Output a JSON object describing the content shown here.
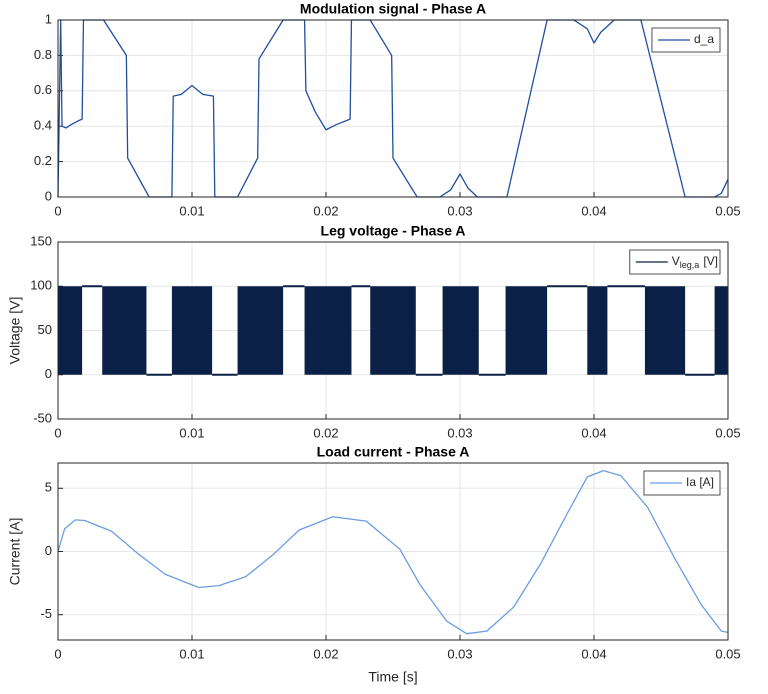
{
  "chart_data": [
    {
      "type": "line",
      "title": "Modulation signal - Phase A",
      "x": [
        0,
        0.0002,
        0.0003,
        0.0006,
        0.001,
        0.0015,
        0.0018,
        0.0019,
        0.0034,
        0.0051,
        0.0052,
        0.0068,
        0.0085,
        0.0086,
        0.0092,
        0.01,
        0.0108,
        0.0116,
        0.0117,
        0.0134,
        0.0149,
        0.015,
        0.0168,
        0.0184,
        0.0185,
        0.0192,
        0.02,
        0.0208,
        0.0218,
        0.0219,
        0.0233,
        0.0249,
        0.025,
        0.0268,
        0.0285,
        0.0293,
        0.03,
        0.0306,
        0.0313,
        0.0335,
        0.0365,
        0.0385,
        0.0395,
        0.04,
        0.0405,
        0.0415,
        0.0435,
        0.0468,
        0.049,
        0.0495,
        0.05
      ],
      "series": [
        {
          "name": "d_a",
          "color": "#1f4f9e",
          "values": [
            0,
            1,
            0.4,
            0.39,
            0.41,
            0.43,
            0.44,
            1,
            1,
            0.8,
            0.22,
            0,
            0,
            0.57,
            0.58,
            0.63,
            0.58,
            0.57,
            0,
            0,
            0.22,
            0.78,
            1,
            1,
            0.6,
            0.48,
            0.38,
            0.41,
            0.44,
            1,
            1,
            0.8,
            0.22,
            0,
            0,
            0.04,
            0.13,
            0.05,
            0,
            0,
            1,
            1,
            0.95,
            0.87,
            0.93,
            1,
            1,
            0,
            0,
            0.02,
            0.1
          ]
        }
      ],
      "xlim": [
        0,
        0.05
      ],
      "xticks": [
        0,
        0.01,
        0.02,
        0.03,
        0.04,
        0.05
      ],
      "ylim": [
        0,
        1
      ],
      "yticks": [
        0,
        0.2,
        0.4,
        0.6,
        0.8,
        1
      ],
      "grid": true,
      "legend": "upper right"
    },
    {
      "type": "band",
      "title": "Leg voltage - Phase A",
      "ylabel": "Voltage [V]",
      "series": [
        {
          "name": "V",
          "name_subscript": "leg,a",
          "name_suffix": "[V]",
          "color": "#0b2046",
          "segments": [
            {
              "x": [
                0,
                0.0018
              ],
              "y": [
                0,
                100
              ]
            },
            {
              "x": [
                0.0018,
                0.0033
              ],
              "y": [
                100,
                100
              ]
            },
            {
              "x": [
                0.0033,
                0.0066
              ],
              "y": [
                0,
                100
              ]
            },
            {
              "x": [
                0.0066,
                0.0085
              ],
              "y": [
                0,
                0
              ]
            },
            {
              "x": [
                0.0085,
                0.0115
              ],
              "y": [
                0,
                100
              ]
            },
            {
              "x": [
                0.0115,
                0.0134
              ],
              "y": [
                0,
                0
              ]
            },
            {
              "x": [
                0.0134,
                0.0168
              ],
              "y": [
                0,
                100
              ]
            },
            {
              "x": [
                0.0168,
                0.0184
              ],
              "y": [
                100,
                100
              ]
            },
            {
              "x": [
                0.0184,
                0.0219
              ],
              "y": [
                0,
                100
              ]
            },
            {
              "x": [
                0.0219,
                0.0233
              ],
              "y": [
                100,
                100
              ]
            },
            {
              "x": [
                0.0233,
                0.0267
              ],
              "y": [
                0,
                100
              ]
            },
            {
              "x": [
                0.0267,
                0.0287
              ],
              "y": [
                0,
                0
              ]
            },
            {
              "x": [
                0.0287,
                0.0314
              ],
              "y": [
                0,
                100
              ]
            },
            {
              "x": [
                0.0314,
                0.0334
              ],
              "y": [
                0,
                0
              ]
            },
            {
              "x": [
                0.0334,
                0.0365
              ],
              "y": [
                0,
                100
              ]
            },
            {
              "x": [
                0.0365,
                0.0395
              ],
              "y": [
                100,
                100
              ]
            },
            {
              "x": [
                0.0395,
                0.041
              ],
              "y": [
                0,
                100
              ]
            },
            {
              "x": [
                0.041,
                0.0438
              ],
              "y": [
                100,
                100
              ]
            },
            {
              "x": [
                0.0438,
                0.0468
              ],
              "y": [
                0,
                100
              ]
            },
            {
              "x": [
                0.0468,
                0.049
              ],
              "y": [
                0,
                0
              ]
            },
            {
              "x": [
                0.049,
                0.05
              ],
              "y": [
                0,
                100
              ]
            }
          ]
        }
      ],
      "xlim": [
        0,
        0.05
      ],
      "xticks": [
        0,
        0.01,
        0.02,
        0.03,
        0.04,
        0.05
      ],
      "ylim": [
        -50,
        150
      ],
      "yticks": [
        -50,
        0,
        50,
        100,
        150
      ],
      "grid": true,
      "legend": "upper right"
    },
    {
      "type": "line",
      "title": "Load current - Phase A",
      "xlabel": "Time [s]",
      "ylabel": "Current [A]",
      "x": [
        0,
        0.0005,
        0.0013,
        0.002,
        0.004,
        0.006,
        0.008,
        0.0105,
        0.012,
        0.014,
        0.016,
        0.018,
        0.0205,
        0.023,
        0.0255,
        0.027,
        0.029,
        0.0305,
        0.032,
        0.034,
        0.036,
        0.038,
        0.0395,
        0.0407,
        0.042,
        0.044,
        0.046,
        0.048,
        0.0495,
        0.05
      ],
      "series": [
        {
          "name": "Ia [A]",
          "color": "#6b9de3",
          "values": [
            0,
            1.8,
            2.5,
            2.45,
            1.6,
            -0.2,
            -1.8,
            -2.85,
            -2.7,
            -2.0,
            -0.3,
            1.7,
            2.75,
            2.4,
            0.2,
            -2.6,
            -5.5,
            -6.5,
            -6.3,
            -4.4,
            -1,
            3,
            5.9,
            6.4,
            6,
            3.5,
            -0.5,
            -4.2,
            -6.3,
            -6.4
          ]
        }
      ],
      "xlim": [
        0,
        0.05
      ],
      "xticks": [
        0,
        0.01,
        0.02,
        0.03,
        0.04,
        0.05
      ],
      "ylim": [
        -7,
        7
      ],
      "yticks": [
        -5,
        0,
        5
      ],
      "grid": true,
      "legend": "upper right"
    }
  ]
}
